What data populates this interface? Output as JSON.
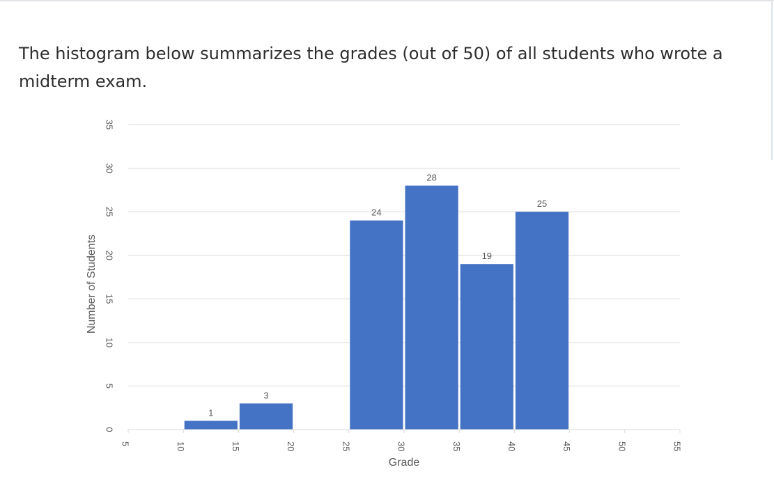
{
  "intro_text": "The histogram below summarizes the grades (out of 50) of all students who wrote a midterm exam.",
  "chart_data": {
    "type": "bar",
    "title": "",
    "xlabel": "Grade",
    "ylabel": "Number of Students",
    "bins": [
      {
        "start": 10,
        "end": 15,
        "value": 1
      },
      {
        "start": 15,
        "end": 20,
        "value": 3
      },
      {
        "start": 25,
        "end": 30,
        "value": 24
      },
      {
        "start": 30,
        "end": 35,
        "value": 28
      },
      {
        "start": 35,
        "end": 40,
        "value": 19
      },
      {
        "start": 40,
        "end": 45,
        "value": 25
      }
    ],
    "xlim": [
      5,
      55
    ],
    "ylim": [
      0,
      35
    ],
    "xticks": [
      5,
      10,
      15,
      20,
      25,
      30,
      35,
      40,
      45,
      50,
      55
    ],
    "yticks": [
      0,
      5,
      10,
      15,
      20,
      25,
      30,
      35
    ],
    "x_tick_labels_rotated": true,
    "y_tick_labels_rotated": true,
    "grid": true,
    "bar_color": "#4472c4",
    "grid_color": "#d9d9d9",
    "text_color": "#595959"
  }
}
